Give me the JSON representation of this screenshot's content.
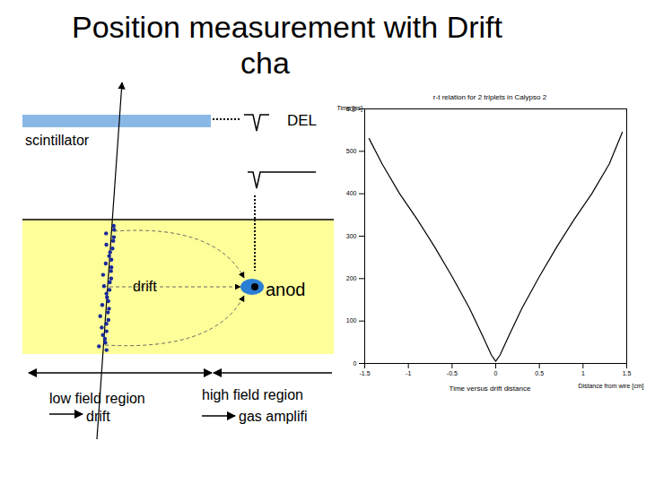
{
  "title": [
    "Position measurement with Drift",
    "cha"
  ],
  "diagram": {
    "scintillator": "scintillator",
    "readout": "DEL",
    "drift": "drift",
    "anode": "anod",
    "regions": [
      {
        "label": "low field region",
        "sublabel": "drift"
      },
      {
        "label": "high field region",
        "sublabel": "gas amplifi"
      }
    ]
  },
  "chart_data": {
    "type": "line",
    "title": "r-t relation for 2 triplets in Calypso 2",
    "x_label": "Distance from wire [cm]",
    "y_label": "Time [ns]",
    "caption": "Time versus drift distance",
    "x": [
      -1.45,
      -1.3,
      -1.1,
      -0.9,
      -0.7,
      -0.5,
      -0.3,
      -0.15,
      -0.05,
      0,
      0.05,
      0.15,
      0.3,
      0.5,
      0.7,
      0.9,
      1.1,
      1.3,
      1.45
    ],
    "values": [
      530,
      470,
      400,
      340,
      275,
      205,
      130,
      65,
      20,
      5,
      20,
      65,
      130,
      205,
      275,
      340,
      400,
      470,
      545
    ],
    "color": "#000000",
    "xlim": [
      -1.5,
      1.5
    ],
    "xticks": [
      -1.5,
      -1,
      -0.5,
      0,
      0.5,
      1,
      1.5
    ],
    "ylim": [
      0,
      600
    ],
    "yticks": [
      0,
      100,
      200,
      300,
      400,
      500,
      600
    ],
    "grid": false
  }
}
